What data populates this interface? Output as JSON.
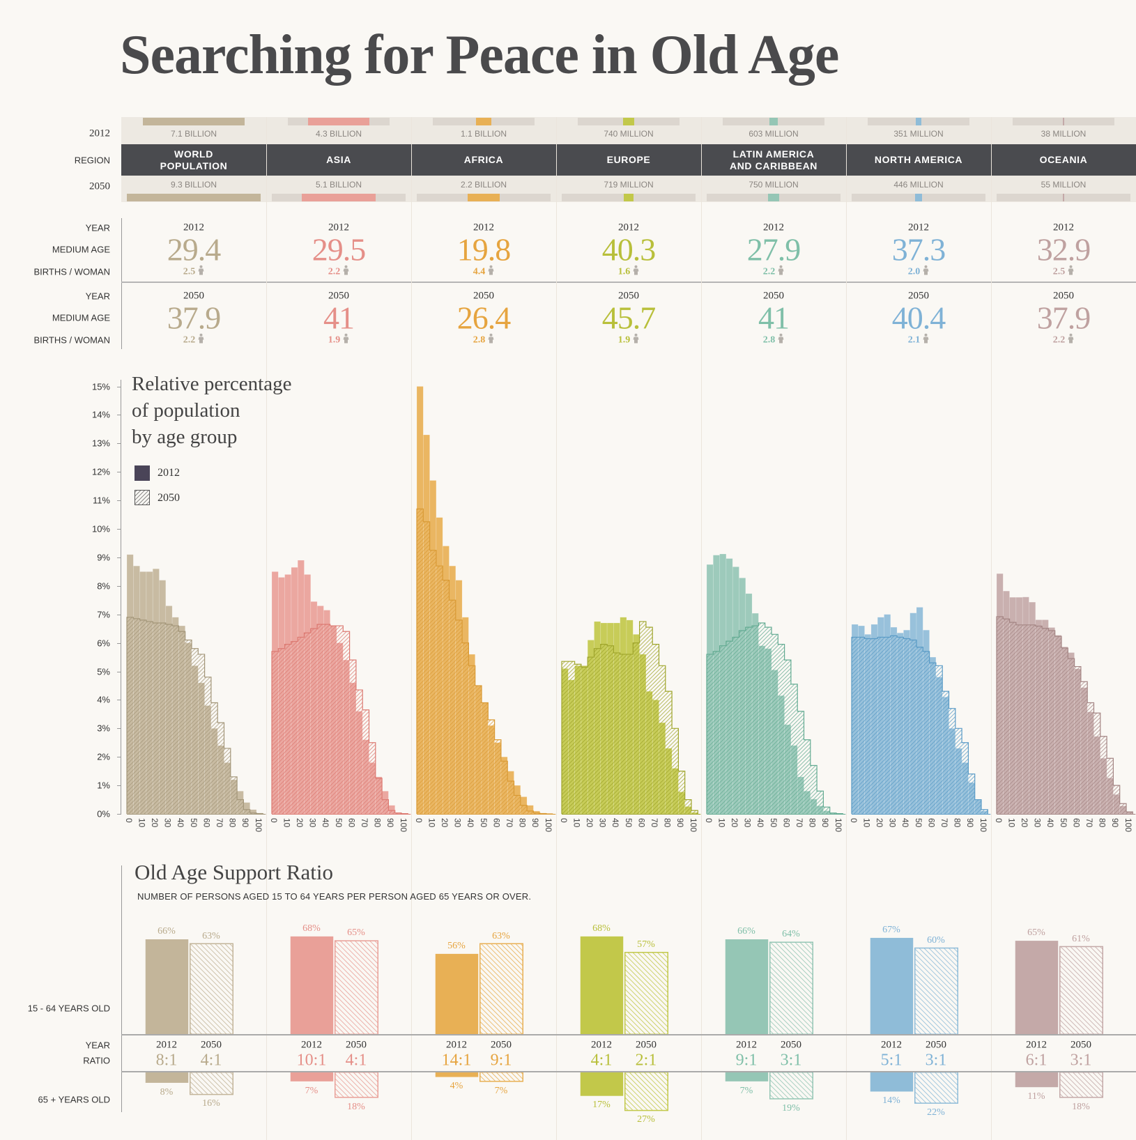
{
  "title": "Searching for Peace in Old Age",
  "row_labels": {
    "y2012": "2012",
    "region": "REGION",
    "y2050": "2050",
    "year": "YEAR",
    "median_age": "MEDIUM AGE",
    "births": "BIRTHS / WOMAN"
  },
  "icons": {
    "births": "person-icon"
  },
  "regions": [
    {
      "name": "WORLD\nPOPULATION",
      "color": "#c3b59a",
      "dark": "#a39679",
      "text": "#b8aa8c",
      "pop2012": {
        "label": "7.1 BILLION",
        "billions": 7.1
      },
      "pop2050": {
        "label": "9.3 BILLION",
        "billions": 9.3
      },
      "y2012": {
        "year": "2012",
        "median_age": "29.4",
        "births": "2.5"
      },
      "y2050": {
        "year": "2050",
        "median_age": "37.9",
        "births": "2.2"
      }
    },
    {
      "name": "ASIA",
      "color": "#e9a098",
      "dark": "#dc7a72",
      "text": "#e58f88",
      "pop2012": {
        "label": "4.3 BILLION",
        "billions": 4.3
      },
      "pop2050": {
        "label": "5.1 BILLION",
        "billions": 5.1
      },
      "y2012": {
        "year": "2012",
        "median_age": "29.5",
        "births": "2.2"
      },
      "y2050": {
        "year": "2050",
        "median_age": "41",
        "births": "1.9"
      }
    },
    {
      "name": "AFRICA",
      "color": "#e8b055",
      "dark": "#d99a35",
      "text": "#e6a43f",
      "pop2012": {
        "label": "1.1 BILLION",
        "billions": 1.1
      },
      "pop2050": {
        "label": "2.2 BILLION",
        "billions": 2.2
      },
      "y2012": {
        "year": "2012",
        "median_age": "19.8",
        "births": "4.4"
      },
      "y2050": {
        "year": "2050",
        "median_age": "26.4",
        "births": "2.8"
      }
    },
    {
      "name": "EUROPE",
      "color": "#c2c84a",
      "dark": "#9fa52c",
      "text": "#b8bf3a",
      "pop2012": {
        "label": "740 MILLION",
        "billions": 0.74
      },
      "pop2050": {
        "label": "719 MILLION",
        "billions": 0.719
      },
      "y2012": {
        "year": "2012",
        "median_age": "40.3",
        "births": "1.6"
      },
      "y2050": {
        "year": "2050",
        "median_age": "45.7",
        "births": "1.9"
      }
    },
    {
      "name": "LATIN AMERICA\nAND CARIBBEAN",
      "color": "#95c6b5",
      "dark": "#63ab92",
      "text": "#7fbfa8",
      "pop2012": {
        "label": "603 MILLION",
        "billions": 0.603
      },
      "pop2050": {
        "label": "750 MILLION",
        "billions": 0.75
      },
      "y2012": {
        "year": "2012",
        "median_age": "27.9",
        "births": "2.2"
      },
      "y2050": {
        "year": "2050",
        "median_age": "41",
        "births": "2.8"
      }
    },
    {
      "name": "NORTH AMERICA",
      "color": "#8fbcd8",
      "dark": "#5a9bc6",
      "text": "#7fb2d6",
      "pop2012": {
        "label": "351 MILLION",
        "billions": 0.351
      },
      "pop2050": {
        "label": "446 MILLION",
        "billions": 0.446
      },
      "y2012": {
        "year": "2012",
        "median_age": "37.3",
        "births": "2.0"
      },
      "y2050": {
        "year": "2050",
        "median_age": "40.4",
        "births": "2.1"
      }
    },
    {
      "name": "OCEANIA",
      "color": "#c4a9a8",
      "dark": "#a48584",
      "text": "#bfa1a0",
      "pop2012": {
        "label": "38 MILLION",
        "billions": 0.038
      },
      "pop2050": {
        "label": "55 MILLION",
        "billions": 0.055
      },
      "y2012": {
        "year": "2012",
        "median_age": "32.9",
        "births": "2.5"
      },
      "y2050": {
        "year": "2050",
        "median_age": "37.9",
        "births": "2.2"
      }
    }
  ],
  "chart_data": [
    {
      "type": "bar",
      "title_lines": [
        "Relative percentage",
        "of population",
        "by age group"
      ],
      "ylim": [
        0,
        15
      ],
      "yticks": [
        "0%",
        "1%",
        "2%",
        "3%",
        "4%",
        "5%",
        "6%",
        "7%",
        "8%",
        "9%",
        "10%",
        "11%",
        "12%",
        "13%",
        "14%",
        "15%"
      ],
      "xticks": [
        "0",
        "10",
        "20",
        "30",
        "40",
        "50",
        "60",
        "70",
        "80",
        "90",
        "100"
      ],
      "categories": [
        "0-4",
        "5-9",
        "10-14",
        "15-19",
        "20-24",
        "25-29",
        "30-34",
        "35-39",
        "40-44",
        "45-49",
        "50-54",
        "55-59",
        "60-64",
        "65-69",
        "70-74",
        "75-79",
        "80-84",
        "85-89",
        "90-94",
        "95-99",
        "100+"
      ],
      "legend": [
        {
          "label": "2012",
          "style": "solid",
          "color": "#4a4458"
        },
        {
          "label": "2050",
          "style": "hatched"
        }
      ],
      "legend_position": "top-left",
      "panels": [
        {
          "region": "WORLD POPULATION",
          "series": [
            {
              "name": "2012",
              "values": [
                9.1,
                8.7,
                8.5,
                8.5,
                8.6,
                8.2,
                7.3,
                6.9,
                6.6,
                6.0,
                5.2,
                4.6,
                3.8,
                3.0,
                2.4,
                1.8,
                1.2,
                0.8,
                0.4,
                0.15,
                0.03
              ]
            },
            {
              "name": "2050",
              "values": [
                6.9,
                6.85,
                6.8,
                6.75,
                6.7,
                6.7,
                6.65,
                6.6,
                6.4,
                6.1,
                5.8,
                5.6,
                4.8,
                3.9,
                3.2,
                2.3,
                1.3,
                0.5,
                0.15,
                0.03,
                0.01
              ]
            }
          ]
        },
        {
          "region": "ASIA",
          "series": [
            {
              "name": "2012",
              "values": [
                8.5,
                8.3,
                8.4,
                8.65,
                8.9,
                8.4,
                7.45,
                7.3,
                7.15,
                6.6,
                6.0,
                5.4,
                4.6,
                3.6,
                2.6,
                1.8,
                1.3,
                0.8,
                0.3,
                0.05,
                0.01
              ]
            },
            {
              "name": "2050",
              "values": [
                5.7,
                5.8,
                5.95,
                6.05,
                6.2,
                6.35,
                6.5,
                6.65,
                6.65,
                6.6,
                6.6,
                6.4,
                5.4,
                4.35,
                3.65,
                2.5,
                1.25,
                0.5,
                0.12,
                0.03,
                0.01
              ]
            }
          ]
        },
        {
          "region": "AFRICA",
          "series": [
            {
              "name": "2012",
              "values": [
                15.0,
                13.3,
                11.7,
                10.4,
                9.4,
                8.7,
                8.2,
                6.9,
                5.6,
                4.5,
                3.9,
                3.1,
                2.5,
                2.0,
                1.5,
                1.0,
                0.6,
                0.3,
                0.1,
                0.03,
                0.01
              ]
            },
            {
              "name": "2050",
              "values": [
                10.7,
                10.25,
                9.25,
                8.7,
                8.2,
                7.5,
                6.8,
                6.0,
                5.2,
                4.5,
                3.9,
                3.3,
                2.6,
                1.85,
                1.15,
                0.65,
                0.3,
                0.1,
                0.03,
                0.01,
                0
              ]
            }
          ]
        },
        {
          "region": "EUROPE",
          "series": [
            {
              "name": "2012",
              "values": [
                5.1,
                4.7,
                5.2,
                5.2,
                6.1,
                6.75,
                6.7,
                6.7,
                6.7,
                6.9,
                6.8,
                6.3,
                5.6,
                4.3,
                4.0,
                3.2,
                2.3,
                1.6,
                0.77,
                0.26,
                0.05
              ]
            },
            {
              "name": "2050",
              "values": [
                5.35,
                5.35,
                5.25,
                5.15,
                5.5,
                5.8,
                5.95,
                5.9,
                5.65,
                5.6,
                5.6,
                6.0,
                6.75,
                6.55,
                5.95,
                5.2,
                4.3,
                3.0,
                1.5,
                0.5,
                0.12
              ]
            }
          ]
        },
        {
          "region": "LATIN AMERICA AND CARIBBEAN",
          "series": [
            {
              "name": "2012",
              "values": [
                8.75,
                9.08,
                9.12,
                8.96,
                8.67,
                8.28,
                7.73,
                7.04,
                5.9,
                5.8,
                5.05,
                4.15,
                3.13,
                2.4,
                1.3,
                0.8,
                0.52,
                0.28,
                0.11,
                0.03,
                0.01
              ]
            },
            {
              "name": "2050",
              "values": [
                5.6,
                5.7,
                5.9,
                6.06,
                6.2,
                6.43,
                6.55,
                6.6,
                6.7,
                6.55,
                6.3,
                5.95,
                5.4,
                4.55,
                3.6,
                2.6,
                1.7,
                0.8,
                0.24,
                0.03,
                0.01
              ]
            }
          ]
        },
        {
          "region": "NORTH AMERICA",
          "series": [
            {
              "name": "2012",
              "values": [
                6.65,
                6.6,
                6.3,
                6.65,
                6.9,
                7.0,
                6.55,
                6.35,
                6.45,
                7.05,
                7.25,
                6.45,
                5.5,
                4.8,
                4.1,
                3.0,
                2.3,
                1.8,
                1.1,
                0.5,
                0.1
              ]
            },
            {
              "name": "2050",
              "values": [
                6.2,
                6.2,
                6.15,
                6.15,
                6.2,
                6.2,
                6.25,
                6.2,
                6.15,
                6.1,
                5.85,
                5.7,
                5.3,
                5.2,
                4.3,
                3.7,
                3.0,
                2.5,
                1.4,
                0.5,
                0.15
              ]
            }
          ]
        },
        {
          "region": "OCEANIA",
          "series": [
            {
              "name": "2012",
              "values": [
                8.43,
                7.82,
                7.6,
                7.6,
                7.61,
                7.43,
                6.81,
                6.81,
                6.54,
                6.27,
                5.86,
                5.66,
                5.09,
                4.43,
                3.58,
                2.72,
                1.95,
                1.26,
                0.68,
                0.28,
                0.07
              ]
            },
            {
              "name": "2050",
              "values": [
                6.92,
                6.84,
                6.72,
                6.63,
                6.63,
                6.63,
                6.59,
                6.51,
                6.43,
                6.23,
                5.82,
                5.45,
                5.17,
                4.64,
                3.9,
                3.54,
                2.72,
                1.95,
                1.0,
                0.36,
                0.07
              ]
            }
          ]
        }
      ]
    },
    {
      "type": "bar",
      "title": "Old Age Support Ratio",
      "subtitle": "NUMBER OF PERSONS AGED 15 TO 64 YEARS PER PERSON AGED 65 YEARS OR OVER.",
      "upper_label": "15 - 64 YEARS OLD",
      "lower_label": "65 + YEARS OLD",
      "year_label": "YEAR",
      "ratio_label": "RATIO",
      "years": [
        "2012",
        "2050"
      ],
      "panels": [
        {
          "region": "WORLD POPULATION",
          "working_age_pct": [
            66,
            63
          ],
          "old_age_pct": [
            8,
            16
          ],
          "working_labels": [
            "66%",
            "63%"
          ],
          "old_labels": [
            "8%",
            "16%"
          ],
          "ratios": [
            "8:1",
            "4:1"
          ]
        },
        {
          "region": "ASIA",
          "working_age_pct": [
            68,
            65
          ],
          "old_age_pct": [
            7,
            18
          ],
          "working_labels": [
            "68%",
            "65%"
          ],
          "old_labels": [
            "7%",
            "18%"
          ],
          "ratios": [
            "10:1",
            "4:1"
          ]
        },
        {
          "region": "AFRICA",
          "working_age_pct": [
            56,
            63
          ],
          "old_age_pct": [
            4,
            7
          ],
          "working_labels": [
            "56%",
            "63%"
          ],
          "old_labels": [
            "4%",
            "7%"
          ],
          "ratios": [
            "14:1",
            "9:1"
          ]
        },
        {
          "region": "EUROPE",
          "working_age_pct": [
            68,
            57
          ],
          "old_age_pct": [
            17,
            27
          ],
          "working_labels": [
            "68%",
            "57%"
          ],
          "old_labels": [
            "17%",
            "27%"
          ],
          "ratios": [
            "4:1",
            "2:1"
          ]
        },
        {
          "region": "LATIN AMERICA AND CARIBBEAN",
          "working_age_pct": [
            66,
            64
          ],
          "old_age_pct": [
            7,
            19
          ],
          "working_labels": [
            "66%",
            "64%"
          ],
          "old_labels": [
            "7%",
            "19%"
          ],
          "ratios": [
            "9:1",
            "3:1"
          ]
        },
        {
          "region": "NORTH AMERICA",
          "working_age_pct": [
            67,
            60
          ],
          "old_age_pct": [
            14,
            22
          ],
          "working_labels": [
            "67%",
            "60%"
          ],
          "old_labels": [
            "14%",
            "22%"
          ],
          "ratios": [
            "5:1",
            "3:1"
          ]
        },
        {
          "region": "OCEANIA",
          "working_age_pct": [
            65,
            61
          ],
          "old_age_pct": [
            11,
            18
          ],
          "working_labels": [
            "65%",
            "61%"
          ],
          "old_labels": [
            "11%",
            "18%"
          ],
          "ratios": [
            "6:1",
            "3:1"
          ]
        }
      ]
    }
  ]
}
